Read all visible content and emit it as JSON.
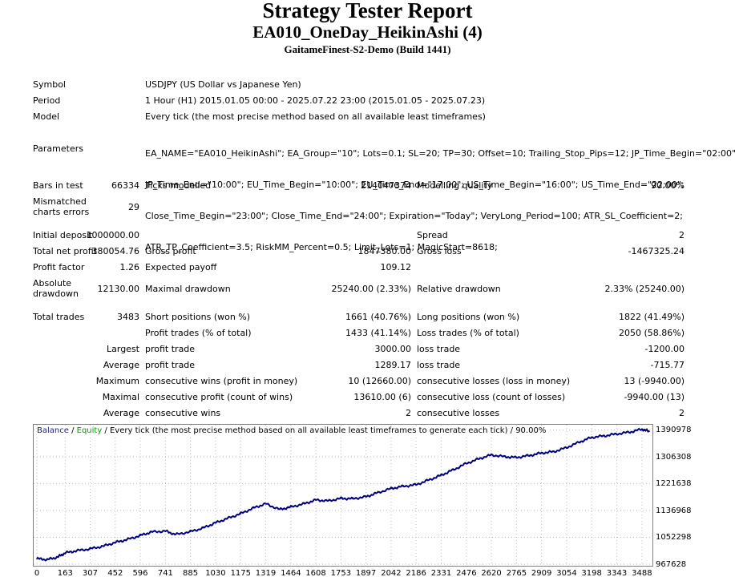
{
  "header": {
    "title": "Strategy Tester Report",
    "ea_name": "EA010_OneDay_HeikinAshi (4)",
    "server": "GaitameFinest-S2-Demo (Build 1441)"
  },
  "info": {
    "symbol_label": "Symbol",
    "symbol_value": "USDJPY (US Dollar vs Japanese Yen)",
    "period_label": "Period",
    "period_value": "1 Hour (H1) 2015.01.05 00:00 - 2025.07.22 23:00 (2015.01.05 - 2025.07.23)",
    "model_label": "Model",
    "model_value": "Every tick (the most precise method based on all available least timeframes)",
    "parameters_label": "Parameters",
    "parameters_lines": [
      "EA_NAME=\"EA010_HeikinAshi\"; EA_Group=\"10\"; Lots=0.1; SL=20; TP=30; Offset=10; Trailing_Stop_Pips=12; JP_Time_Begin=\"02:00\";",
      "JP_Time_End=\"10:00\"; EU_Time_Begin=\"10:00\"; EU_Time_End=\"17:00\"; US_Time_Begin=\"16:00\"; US_Time_End=\"22:00\";",
      "Close_Time_Begin=\"23:00\"; Close_Time_End=\"24:00\"; Expiration=\"Today\"; VeryLong_Period=100; ATR_SL_Coefficient=2;",
      "ATR_TP_Coefficient=3.5; RiskMM_Percent=0.5; Limit_Lots=1; MagicStart=8618;"
    ]
  },
  "stats": {
    "bars_label": "Bars in test",
    "bars_value": "66334",
    "ticks_label": "Ticks modelled",
    "ticks_value": "214047374",
    "quality_label": "Modelling quality",
    "quality_value": "90.00%",
    "mismatched_label_1": "Mismatched",
    "mismatched_label_2": "charts errors",
    "mismatched_value": "29",
    "initial_deposit_label": "Initial deposit",
    "initial_deposit_value": "1000000.00",
    "spread_label": "Spread",
    "spread_value": "2",
    "net_profit_label": "Total net profit",
    "net_profit_value": "380054.76",
    "gross_profit_label": "Gross profit",
    "gross_profit_value": "1847380.00",
    "gross_loss_label": "Gross loss",
    "gross_loss_value": "-1467325.24",
    "profit_factor_label": "Profit factor",
    "profit_factor_value": "1.26",
    "expected_payoff_label": "Expected payoff",
    "expected_payoff_value": "109.12",
    "abs_dd_label_1": "Absolute",
    "abs_dd_label_2": "drawdown",
    "abs_dd_value": "12130.00",
    "max_dd_label": "Maximal drawdown",
    "max_dd_value": "25240.00 (2.33%)",
    "rel_dd_label": "Relative drawdown",
    "rel_dd_value": "2.33% (25240.00)",
    "total_trades_label": "Total trades",
    "total_trades_value": "3483",
    "short_label": "Short positions (won %)",
    "short_value": "1661 (40.76%)",
    "long_label": "Long positions (won %)",
    "long_value": "1822 (41.49%)",
    "profit_trades_label": "Profit trades (% of total)",
    "profit_trades_value": "1433 (41.14%)",
    "loss_trades_label": "Loss trades (% of total)",
    "loss_trades_value": "2050 (58.86%)",
    "largest_label": "Largest",
    "largest_profit_label": "profit trade",
    "largest_profit_value": "3000.00",
    "largest_loss_label": "loss trade",
    "largest_loss_value": "-1200.00",
    "average_label": "Average",
    "average_profit_label": "profit trade",
    "average_profit_value": "1289.17",
    "average_loss_label": "loss trade",
    "average_loss_value": "-715.77",
    "maximum_label": "Maximum",
    "max_cons_wins_label": "consecutive wins (profit in money)",
    "max_cons_wins_value": "10 (12660.00)",
    "max_cons_losses_label": "consecutive losses (loss in money)",
    "max_cons_losses_value": "13 (-9940.00)",
    "maximal_label": "Maximal",
    "maximal_cons_profit_label": "consecutive profit (count of wins)",
    "maximal_cons_profit_value": "13610.00 (6)",
    "maximal_cons_loss_label": "consecutive loss (count of losses)",
    "maximal_cons_loss_value": "-9940.00 (13)",
    "average2_label": "Average",
    "avg_cons_wins_label": "consecutive wins",
    "avg_cons_wins_value": "2",
    "avg_cons_losses_label": "consecutive losses",
    "avg_cons_losses_value": "2"
  },
  "chart_data": {
    "type": "line",
    "legend": {
      "balance": "Balance",
      "sep1": " / ",
      "equity": "Equity",
      "rest": " / Every tick (the most precise method based on all available least timeframes to generate each tick) / 90.00%"
    },
    "colors": {
      "balance": "#000080",
      "equity": "#00a000",
      "legend_balance": "#1c1c8c",
      "grid": "#bbbbbb"
    },
    "ylim": [
      967628,
      1402000
    ],
    "xlim": [
      0,
      3530
    ],
    "y_ticks": [
      1390978,
      1306308,
      1221638,
      1136968,
      1052298,
      967628
    ],
    "x_ticks": [
      0,
      163,
      307,
      452,
      596,
      741,
      885,
      1030,
      1175,
      1319,
      1464,
      1608,
      1753,
      1897,
      2042,
      2186,
      2331,
      2476,
      2620,
      2765,
      2909,
      3054,
      3198,
      3343,
      3488
    ],
    "series": [
      {
        "name": "Balance",
        "x": [
          0,
          60,
          120,
          163,
          230,
          307,
          380,
          452,
          520,
          596,
          660,
          741,
          800,
          885,
          960,
          1030,
          1100,
          1175,
          1250,
          1319,
          1400,
          1464,
          1540,
          1608,
          1680,
          1753,
          1820,
          1897,
          1960,
          2042,
          2110,
          2186,
          2260,
          2331,
          2400,
          2476,
          2550,
          2620,
          2700,
          2765,
          2840,
          2909,
          2980,
          3054,
          3130,
          3198,
          3270,
          3343,
          3420,
          3488,
          3530
        ],
        "values": [
          985000,
          982000,
          990000,
          1003000,
          1010000,
          1016000,
          1024000,
          1036000,
          1045000,
          1058000,
          1069000,
          1072000,
          1061000,
          1070000,
          1082000,
          1098000,
          1112000,
          1127000,
          1145000,
          1158000,
          1140000,
          1148000,
          1158000,
          1170000,
          1167000,
          1175000,
          1174000,
          1180000,
          1192000,
          1206000,
          1213000,
          1218000,
          1233000,
          1248000,
          1265000,
          1285000,
          1300000,
          1312000,
          1306000,
          1304000,
          1310000,
          1318000,
          1322000,
          1335000,
          1353000,
          1367000,
          1372000,
          1378000,
          1384000,
          1393000,
          1386000
        ]
      }
    ]
  }
}
